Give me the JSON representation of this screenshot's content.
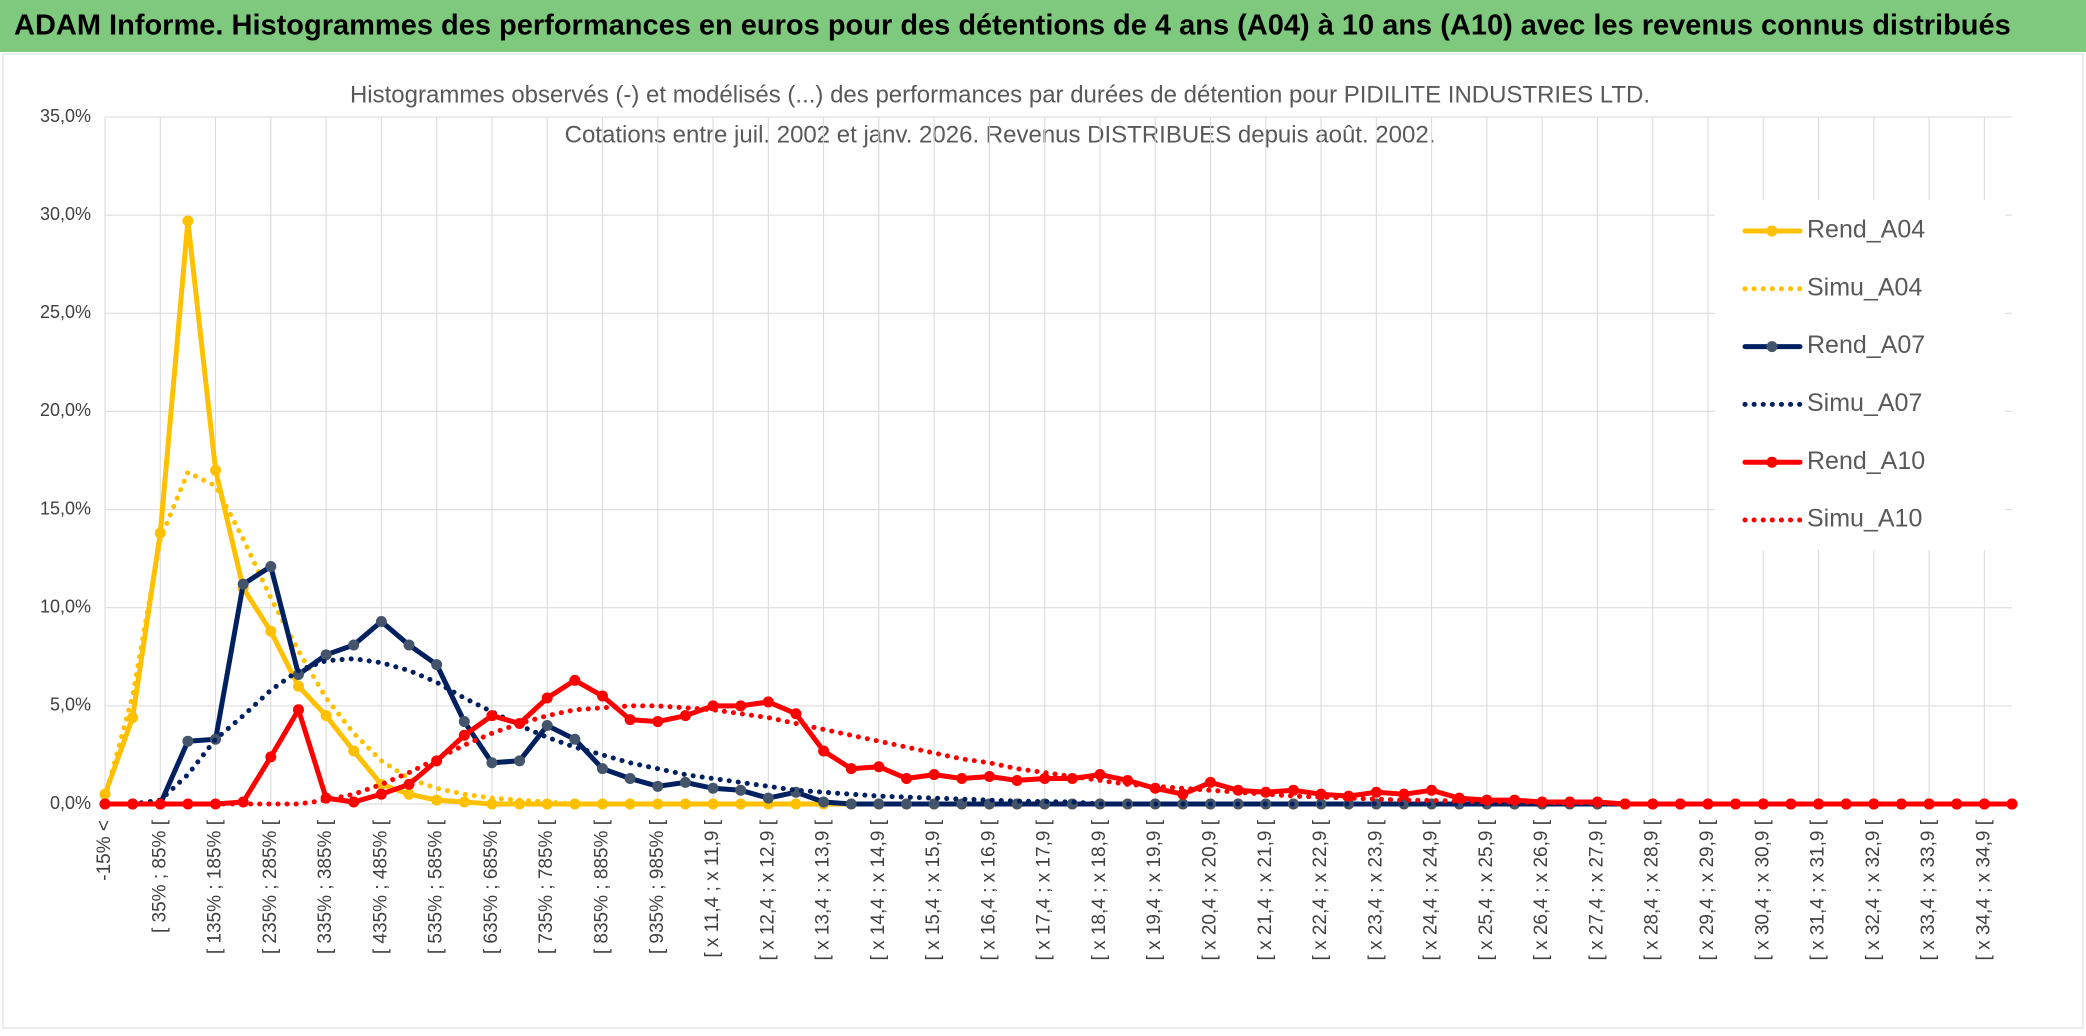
{
  "chart_data": {
    "type": "line",
    "header": "ADAM Informe. Histogrammes des performances en euros pour des détentions de 4 ans (A04) à 10 ans (A10) avec les revenus connus distribués",
    "title": "Histogrammes observés (-) et modélisés (...) des performances par durées de détention pour PIDILITE INDUSTRIES LTD.",
    "subtitle": "Cotations entre juil. 2002 et janv. 2026. Revenus DISTRIBUES depuis août. 2002.",
    "categories": [
      "-15% <",
      null,
      "[ 35% ; 85% [",
      null,
      "[ 135% ; 185% [",
      null,
      "[ 235% ; 285% [",
      null,
      "[ 335% ; 385% [",
      null,
      "[ 435% ; 485% [",
      null,
      "[ 535% ; 585% [",
      null,
      "[ 635% ; 685% [",
      null,
      "[ 735% ; 785% [",
      null,
      "[ 835% ; 885% [",
      null,
      "[ 935% ; 985% [",
      null,
      "[ x 11,4 ; x 11,9 [",
      null,
      "[ x 12,4 ; x 12,9 [",
      null,
      "[ x 13,4 ; x 13,9 [",
      null,
      "[ x 14,4 ; x 14,9 [",
      null,
      "[ x 15,4 ; x 15,9 [",
      null,
      "[ x 16,4 ; x 16,9 [",
      null,
      "[ x 17,4 ; x 17,9 [",
      null,
      "[ x 18,4 ; x 18,9 [",
      null,
      "[ x 19,4 ; x 19,9 [",
      null,
      "[ x 20,4 ; x 20,9 [",
      null,
      "[ x 21,4 ; x 21,9 [",
      null,
      "[ x 22,4 ; x 22,9 [",
      null,
      "[ x 23,4 ; x 23,9 [",
      null,
      "[ x 24,4 ; x 24,9 [",
      null,
      "[ x 25,4 ; x 25,9 [",
      null,
      "[ x 26,4 ; x 26,9 [",
      null,
      "[ x 27,4 ; x 27,9 [",
      null,
      "[ x 28,4 ; x 28,9 [",
      null,
      "[ x 29,4 ; x 29,9 [",
      null,
      "[ x 30,4 ; x 30,9 [",
      null,
      "[ x 31,4 ; x 31,9 [",
      null,
      "[ x 32,4 ; x 32,9 [",
      null,
      "[ x 33,4 ; x 33,9 [",
      null,
      "[ x 34,4 ; x 34,9 [",
      null
    ],
    "series": [
      {
        "name": "Rend_A04",
        "color": "#ffc000",
        "style": "solid",
        "markers": true,
        "values": [
          0.5,
          4.4,
          13.8,
          29.7,
          17.0,
          11.0,
          8.8,
          6.0,
          4.5,
          2.7,
          1.0,
          0.5,
          0.2,
          0.1,
          0,
          0,
          0,
          0,
          0,
          0,
          0,
          0,
          0,
          0,
          0,
          0,
          0,
          0,
          0,
          0,
          0,
          0,
          0,
          0,
          0,
          0,
          0,
          0,
          0,
          0,
          0,
          0,
          0,
          0,
          0,
          0,
          0,
          0,
          0,
          0,
          0,
          0,
          0,
          0,
          0,
          0,
          0,
          0,
          0,
          0,
          0,
          0,
          0,
          0,
          0,
          0,
          0,
          0,
          0,
          0
        ]
      },
      {
        "name": "Simu_A04",
        "color": "#ffc000",
        "style": "dotted",
        "markers": false,
        "values": [
          0.3,
          5.5,
          13.5,
          16.9,
          16.2,
          13.5,
          10.5,
          7.8,
          5.4,
          3.6,
          2.2,
          1.3,
          0.8,
          0.5,
          0.3,
          0.2,
          0.1,
          0,
          0,
          0,
          0,
          0,
          0,
          0,
          0,
          0,
          0,
          0,
          0,
          0,
          0,
          0,
          0,
          0,
          0,
          0,
          0,
          0,
          0,
          0,
          0,
          0,
          0,
          0,
          0,
          0,
          0,
          0,
          0,
          0,
          0,
          0,
          0,
          0,
          0,
          0,
          0,
          0,
          0,
          0,
          0,
          0,
          0,
          0,
          0,
          0,
          0,
          0,
          0,
          0
        ]
      },
      {
        "name": "Rend_A07",
        "color": "#002060",
        "style": "solid",
        "markers": true,
        "values": [
          0,
          0,
          0,
          3.2,
          3.3,
          11.2,
          12.1,
          6.6,
          7.6,
          8.1,
          9.3,
          8.1,
          7.1,
          4.2,
          2.1,
          2.2,
          4.0,
          3.3,
          1.8,
          1.3,
          0.9,
          1.1,
          0.8,
          0.7,
          0.3,
          0.6,
          0.1,
          0,
          0,
          0,
          0,
          0,
          0,
          0,
          0,
          0,
          0,
          0,
          0,
          0,
          0,
          0,
          0,
          0,
          0,
          0,
          0,
          0,
          0,
          0,
          0,
          0,
          0,
          0,
          0,
          0,
          0,
          0,
          0,
          0,
          0,
          0,
          0,
          0,
          0,
          0,
          0,
          0,
          0,
          0
        ]
      },
      {
        "name": "Simu_A07",
        "color": "#002060",
        "style": "dotted",
        "markers": false,
        "values": [
          0,
          0,
          0.2,
          1.5,
          3.3,
          4.5,
          5.8,
          6.8,
          7.3,
          7.4,
          7.2,
          6.8,
          6.2,
          5.4,
          4.7,
          4.0,
          3.4,
          2.9,
          2.5,
          2.1,
          1.8,
          1.5,
          1.3,
          1.1,
          0.9,
          0.7,
          0.6,
          0.5,
          0.4,
          0.35,
          0.3,
          0.25,
          0.2,
          0.15,
          0.12,
          0.1,
          0,
          0,
          0,
          0,
          0,
          0,
          0,
          0,
          0,
          0,
          0,
          0,
          0,
          0,
          0,
          0,
          0,
          0,
          0,
          0,
          0,
          0,
          0,
          0,
          0,
          0,
          0,
          0,
          0,
          0,
          0,
          0,
          0,
          0
        ]
      },
      {
        "name": "Rend_A10",
        "color": "#ff0000",
        "style": "solid",
        "markers": true,
        "values": [
          0,
          0,
          0,
          0,
          0,
          0.1,
          2.4,
          4.8,
          0.3,
          0.1,
          0.5,
          1.0,
          2.2,
          3.5,
          4.5,
          4.1,
          5.4,
          6.3,
          5.5,
          4.3,
          4.2,
          4.5,
          5.0,
          5.0,
          5.2,
          4.6,
          2.7,
          1.8,
          1.9,
          1.3,
          1.5,
          1.3,
          1.4,
          1.2,
          1.3,
          1.3,
          1.5,
          1.2,
          0.8,
          0.5,
          1.1,
          0.7,
          0.6,
          0.7,
          0.5,
          0.4,
          0.6,
          0.5,
          0.7,
          0.3,
          0.2,
          0.2,
          0.1,
          0.1,
          0.1,
          0,
          0,
          0,
          0,
          0,
          0,
          0,
          0,
          0,
          0,
          0,
          0,
          0,
          0,
          0
        ]
      },
      {
        "name": "Simu_A10",
        "color": "#ff0000",
        "style": "dotted",
        "markers": false,
        "values": [
          0,
          0,
          0,
          0,
          0,
          0,
          0,
          0,
          0.2,
          0.5,
          1.0,
          1.6,
          2.3,
          3.0,
          3.6,
          4.1,
          4.5,
          4.8,
          4.9,
          5.0,
          5.0,
          4.9,
          4.8,
          4.6,
          4.4,
          4.1,
          3.8,
          3.5,
          3.2,
          2.9,
          2.6,
          2.3,
          2.1,
          1.8,
          1.6,
          1.4,
          1.2,
          1.0,
          0.9,
          0.8,
          0.7,
          0.6,
          0.5,
          0.4,
          0.35,
          0.3,
          0.25,
          0.2,
          0.18,
          0.15,
          0.12,
          0.1,
          0.08,
          0.06,
          0.05,
          0,
          0,
          0,
          0,
          0,
          0,
          0,
          0,
          0,
          0,
          0,
          0,
          0,
          0,
          0
        ]
      }
    ],
    "ylim": [
      0,
      35
    ],
    "yticks": [
      {
        "value": 0,
        "label": "0,0%"
      },
      {
        "value": 5,
        "label": "5,0%"
      },
      {
        "value": 10,
        "label": "10,0%"
      },
      {
        "value": 15,
        "label": "15,0%"
      },
      {
        "value": 20,
        "label": "20,0%"
      },
      {
        "value": 25,
        "label": "25,0%"
      },
      {
        "value": 30,
        "label": "30,0%"
      },
      {
        "value": 35,
        "label": "35,0%"
      }
    ],
    "grid": true,
    "legend": "right"
  }
}
